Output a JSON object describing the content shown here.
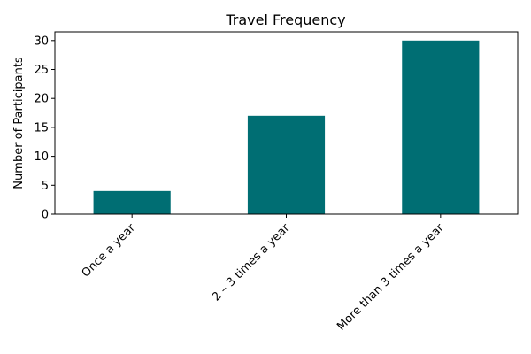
{
  "chart_data": {
    "type": "bar",
    "title": "Travel Frequency",
    "xlabel": "",
    "ylabel": "Number of Participants",
    "categories": [
      "Once a year",
      "2 – 3 times a year",
      "More than 3 times a year"
    ],
    "values": [
      4,
      17,
      30
    ],
    "ylim": [
      0,
      31.5
    ],
    "yticks": [
      0,
      5,
      10,
      15,
      20,
      25,
      30
    ],
    "bar_color": "#006e73",
    "grid": false,
    "legend": "none"
  }
}
